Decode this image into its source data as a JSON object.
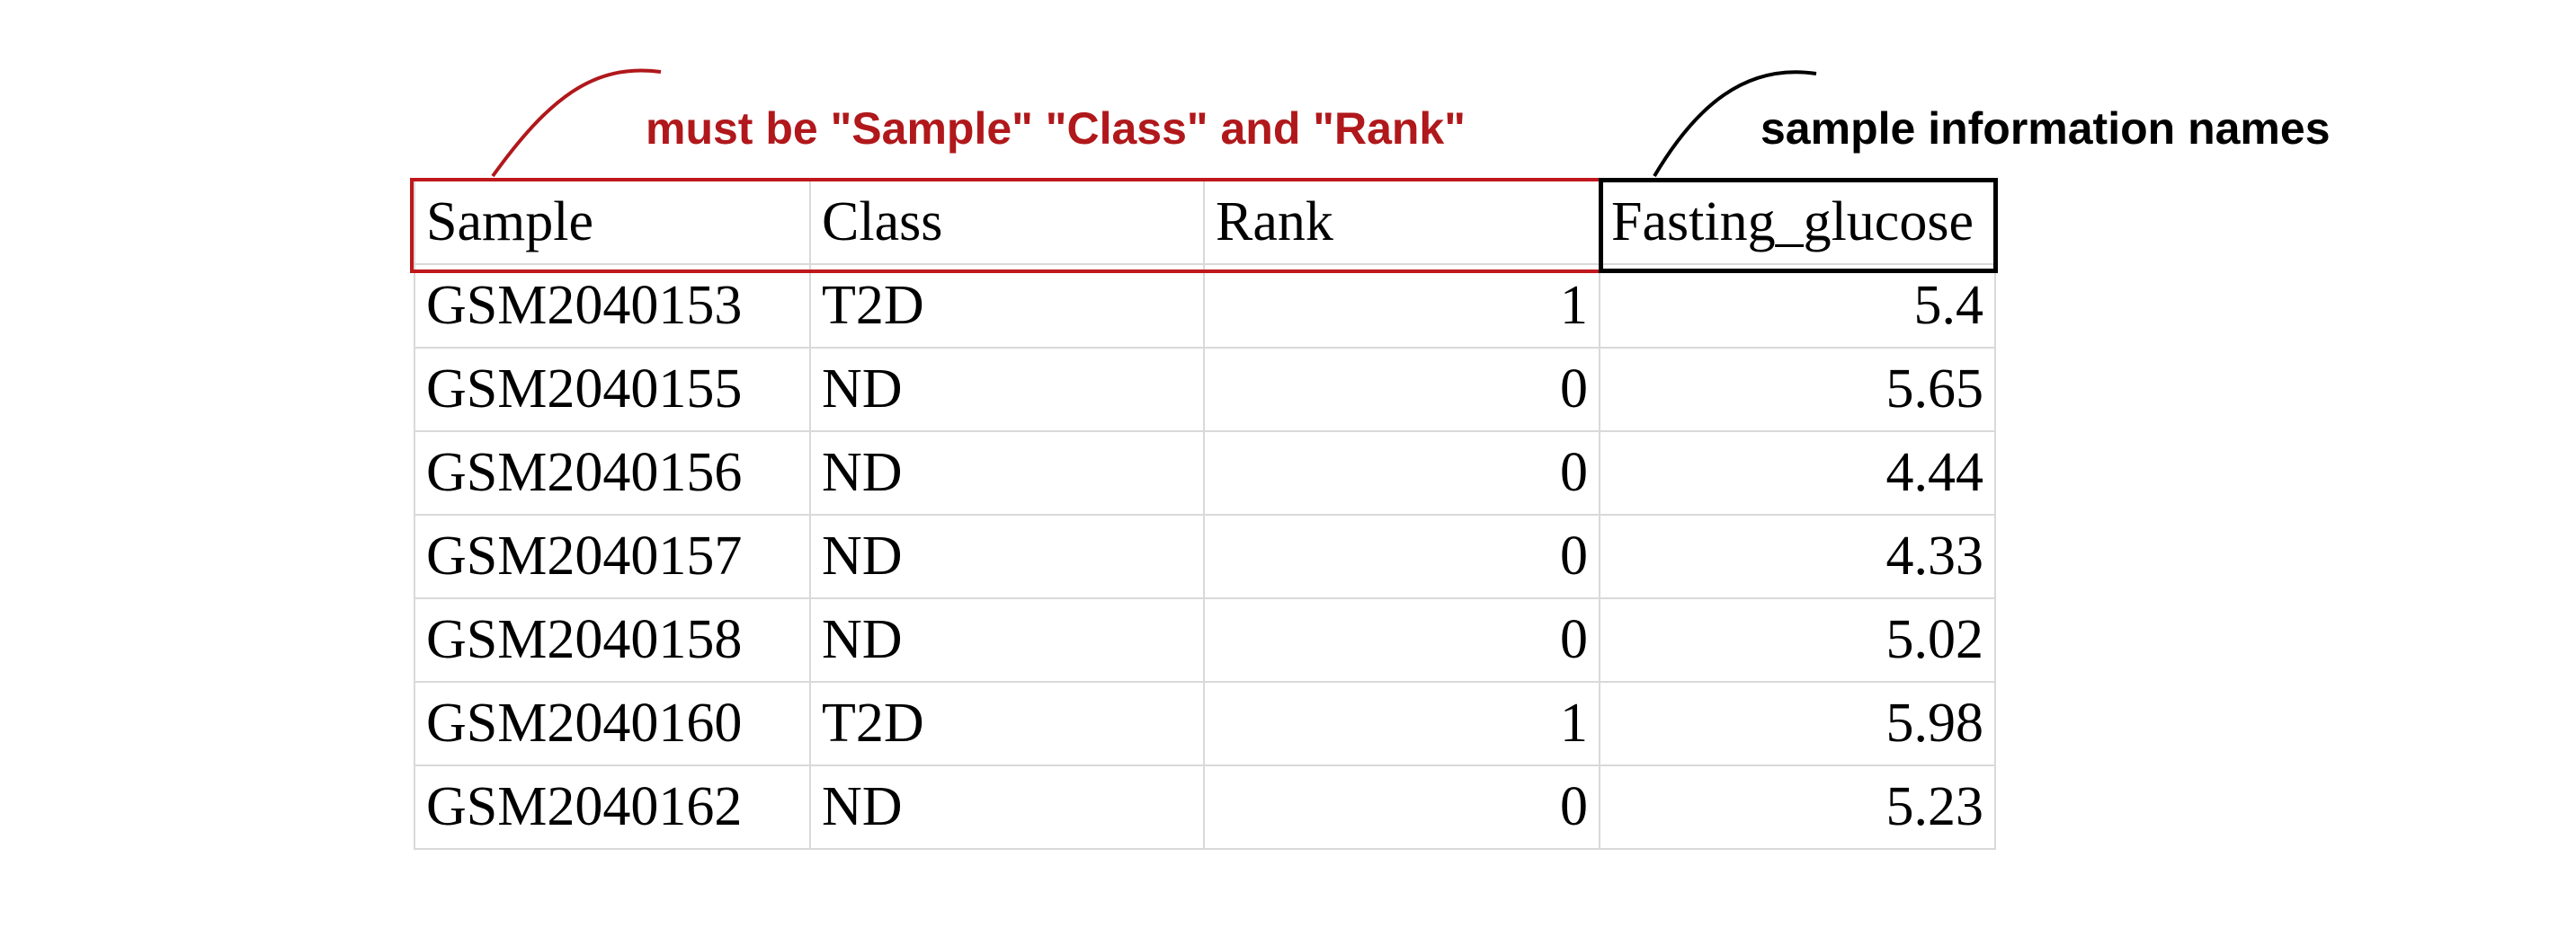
{
  "annotations": {
    "header_note": "must be \"Sample\" \"Class\" and \"Rank\"",
    "info_note": "sample information names"
  },
  "colors": {
    "header_highlight": "#c0171c",
    "info_highlight": "#000000",
    "grid": "#d9d9d9"
  },
  "table": {
    "headers": [
      "Sample",
      "Class",
      "Rank",
      "Fasting_glucose"
    ],
    "rows": [
      [
        "GSM2040153",
        "T2D",
        "1",
        "5.4"
      ],
      [
        "GSM2040155",
        "ND",
        "0",
        "5.65"
      ],
      [
        "GSM2040156",
        "ND",
        "0",
        "4.44"
      ],
      [
        "GSM2040157",
        "ND",
        "0",
        "4.33"
      ],
      [
        "GSM2040158",
        "ND",
        "0",
        "5.02"
      ],
      [
        "GSM2040160",
        "T2D",
        "1",
        "5.98"
      ],
      [
        "GSM2040162",
        "ND",
        "0",
        "5.23"
      ]
    ]
  }
}
